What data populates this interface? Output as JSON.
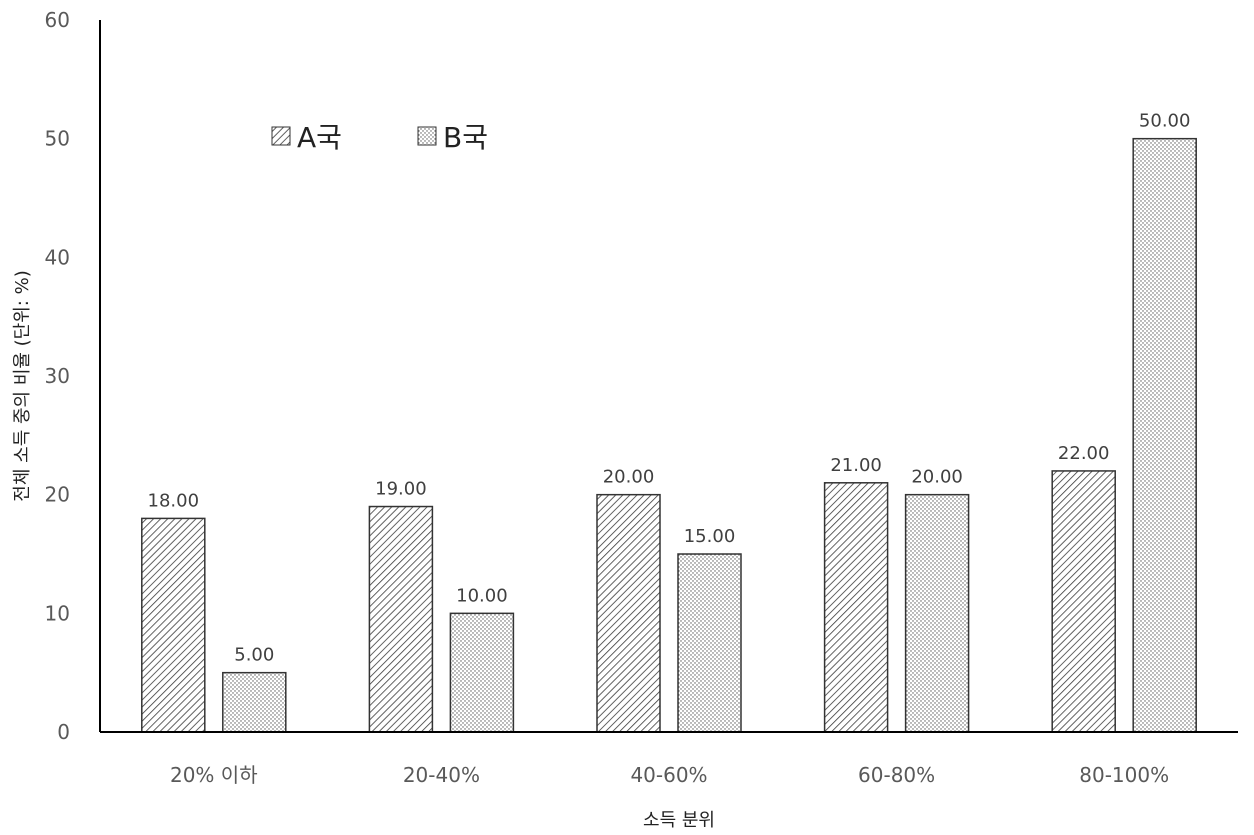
{
  "chart_data": {
    "type": "bar",
    "categories": [
      "20% 이하",
      "20-40%",
      "40-60%",
      "60-80%",
      "80-100%"
    ],
    "series": [
      {
        "name": "A국",
        "values": [
          18,
          19,
          20,
          21,
          22
        ],
        "pattern": "diagonal-hatch",
        "color": "#333333"
      },
      {
        "name": "B국",
        "values": [
          5,
          10,
          15,
          20,
          50
        ],
        "pattern": "dots",
        "color": "#333333"
      }
    ],
    "value_labels": {
      "A국": [
        "18.00",
        "19.00",
        "20.00",
        "21.00",
        "22.00"
      ],
      "B국": [
        "5.00",
        "10.00",
        "15.00",
        "20.00",
        "50.00"
      ]
    },
    "xlabel": "소득 분위",
    "ylabel": "전체 소득 중의 비율 (단위: %)",
    "ylim": [
      0,
      60
    ],
    "yticks": [
      0,
      10,
      20,
      30,
      40,
      50,
      60
    ],
    "grid": false,
    "legend": "top-left"
  }
}
